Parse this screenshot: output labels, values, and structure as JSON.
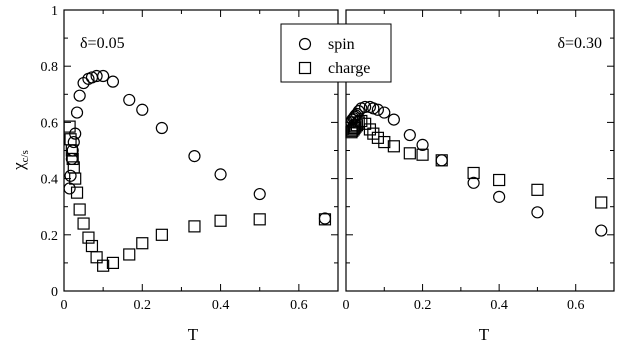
{
  "chart_data": [
    {
      "type": "scatter",
      "panel_label": "δ=0.05",
      "xlabel": "T",
      "ylabel_main": "χ",
      "ylabel_sub": "c/s",
      "xlim": [
        0,
        0.7
      ],
      "ylim": [
        0,
        1
      ],
      "xticks": [
        "0",
        "0.2",
        "0.4",
        "0.6"
      ],
      "xtick_values": [
        0,
        0.2,
        0.4,
        0.6
      ],
      "yticks": [
        "0",
        "0.2",
        "0.4",
        "0.6",
        "0.8",
        "1"
      ],
      "ytick_values": [
        0,
        0.2,
        0.4,
        0.6,
        0.8,
        1.0
      ],
      "series": [
        {
          "name": "spin",
          "marker": "circle",
          "x": [
            0.0143,
            0.0167,
            0.02,
            0.0222,
            0.025,
            0.0286,
            0.0333,
            0.04,
            0.05,
            0.0625,
            0.0714,
            0.0833,
            0.1,
            0.125,
            0.1667,
            0.2,
            0.25,
            0.3333,
            0.4,
            0.5,
            0.6667
          ],
          "y": [
            0.365,
            0.41,
            0.47,
            0.5,
            0.53,
            0.56,
            0.635,
            0.695,
            0.74,
            0.755,
            0.76,
            0.765,
            0.765,
            0.745,
            0.68,
            0.645,
            0.58,
            0.48,
            0.415,
            0.345,
            0.258
          ]
        },
        {
          "name": "charge",
          "marker": "square",
          "x": [
            0.0143,
            0.0167,
            0.02,
            0.0222,
            0.025,
            0.0286,
            0.0333,
            0.04,
            0.05,
            0.0625,
            0.0714,
            0.0833,
            0.1,
            0.125,
            0.1667,
            0.2,
            0.25,
            0.3333,
            0.4,
            0.5,
            0.6667
          ],
          "y": [
            0.585,
            0.54,
            0.5,
            0.47,
            0.44,
            0.4,
            0.35,
            0.29,
            0.24,
            0.19,
            0.16,
            0.12,
            0.09,
            0.1,
            0.13,
            0.17,
            0.2,
            0.23,
            0.25,
            0.255,
            0.255
          ]
        }
      ]
    },
    {
      "type": "scatter",
      "panel_label": "δ=0.30",
      "xlabel": "T",
      "xlim": [
        0,
        0.7
      ],
      "ylim": [
        0,
        1
      ],
      "xticks": [
        "0",
        "0.2",
        "0.4",
        "0.6"
      ],
      "xtick_values": [
        0,
        0.2,
        0.4,
        0.6
      ],
      "series": [
        {
          "name": "spin",
          "marker": "circle",
          "x": [
            0.0143,
            0.0167,
            0.02,
            0.0222,
            0.025,
            0.0286,
            0.0333,
            0.04,
            0.05,
            0.0625,
            0.0714,
            0.0833,
            0.1,
            0.125,
            0.1667,
            0.2,
            0.25,
            0.3333,
            0.4,
            0.5,
            0.6667
          ],
          "y": [
            0.6,
            0.61,
            0.615,
            0.62,
            0.625,
            0.63,
            0.64,
            0.65,
            0.655,
            0.655,
            0.65,
            0.645,
            0.635,
            0.61,
            0.555,
            0.52,
            0.465,
            0.385,
            0.335,
            0.28,
            0.215
          ]
        },
        {
          "name": "charge",
          "marker": "square",
          "x": [
            0.0143,
            0.0167,
            0.02,
            0.0222,
            0.025,
            0.0286,
            0.0333,
            0.04,
            0.05,
            0.0625,
            0.0714,
            0.0833,
            0.1,
            0.125,
            0.1667,
            0.2,
            0.25,
            0.3333,
            0.4,
            0.5,
            0.6667
          ],
          "y": [
            0.565,
            0.57,
            0.575,
            0.58,
            0.585,
            0.59,
            0.6,
            0.605,
            0.595,
            0.575,
            0.56,
            0.545,
            0.53,
            0.515,
            0.49,
            0.485,
            0.465,
            0.42,
            0.395,
            0.36,
            0.315
          ]
        }
      ]
    }
  ],
  "legend": {
    "placement": "top-center",
    "items": [
      {
        "label": "spin",
        "marker": "circle"
      },
      {
        "label": "charge",
        "marker": "square"
      }
    ]
  },
  "colors": {
    "marker_stroke": "#000000",
    "axis": "#000000",
    "background": "#ffffff"
  }
}
